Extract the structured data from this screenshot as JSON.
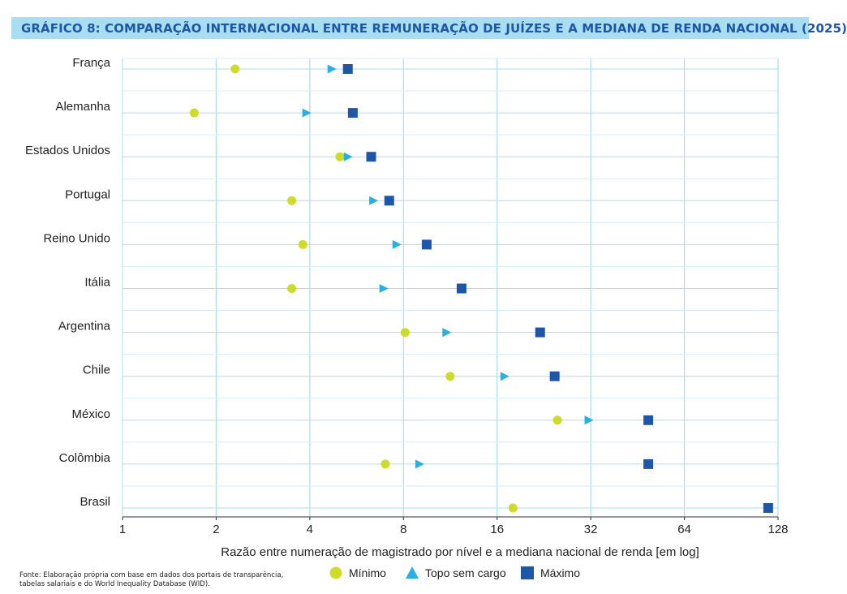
{
  "title": "GRÁFICO 8: COMPARAÇÃO INTERNACIONAL ENTRE REMUNERAÇÃO DE JUÍZES E A MEDIANA DE RENDA NACIONAL (2025)",
  "source": "Fonte: Elaboração própria com base em dados dos portais de transparência, tabelas salariais e do World Inequality Database (WID).",
  "colors": {
    "minimo": "#cddc2b",
    "topo": "#29b0df",
    "maximo": "#1f57a8",
    "grid": "#a9def2",
    "title_bg": "#a9def2",
    "title_text": "#1f57a8"
  },
  "chart_data": {
    "type": "scatter",
    "title": "GRÁFICO 8: COMPARAÇÃO INTERNACIONAL ENTRE REMUNERAÇÃO DE JUÍZES E A MEDIANA DE RENDA NACIONAL (2025)",
    "xlabel": "Razão entre numeração de magistrado por nível e a mediana nacional de renda [em log]",
    "ylabel": "",
    "x_scale": "log2",
    "xlim": [
      1,
      128
    ],
    "x_ticks": [
      "1",
      "2",
      "4",
      "8",
      "16",
      "32",
      "64",
      "128"
    ],
    "grid": true,
    "legend_position": "bottom",
    "categories": [
      "França",
      "Alemanha",
      "Estados Unidos",
      "Portugal",
      "Reino Unido",
      "Itália",
      "Argentina",
      "Chile",
      "México",
      "Colômbia",
      "Brasil"
    ],
    "series": [
      {
        "name": "Mínimo",
        "marker": "circle",
        "values": [
          2.3,
          1.7,
          5.0,
          3.5,
          3.8,
          3.5,
          8.1,
          11.3,
          25.0,
          7.0,
          18.0
        ]
      },
      {
        "name": "Topo sem cargo",
        "marker": "triangle",
        "values": [
          4.7,
          3.9,
          5.3,
          6.4,
          7.6,
          6.9,
          11.0,
          16.9,
          31.5,
          9.0,
          null
        ]
      },
      {
        "name": "Máximo",
        "marker": "square",
        "values": [
          5.3,
          5.5,
          6.3,
          7.2,
          9.5,
          12.3,
          22.0,
          24.5,
          49.0,
          49.0,
          119.0
        ]
      }
    ]
  }
}
